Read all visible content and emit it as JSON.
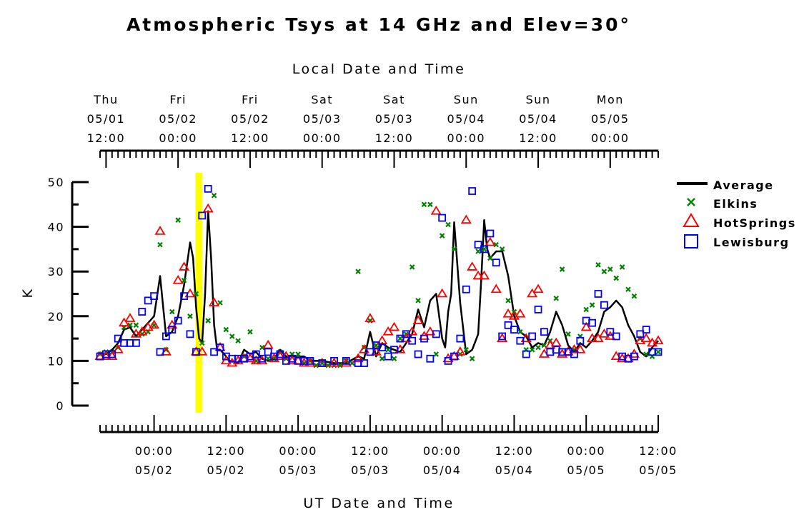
{
  "chart_data": {
    "type": "scatter",
    "title": "Atmospheric Tsys at 14 GHz and Elev=30°",
    "top_axis_title": "Local Date and Time",
    "xlabel": "UT Date and Time",
    "ylabel": "K",
    "x_unit": "hours since 2008-05-01 00:00 UT",
    "xlim": [
      15.0,
      108.0
    ],
    "ylim": [
      0,
      50
    ],
    "yticks": [
      0,
      10,
      20,
      30,
      40,
      50
    ],
    "grid": false,
    "legend_position": "right",
    "top_ticks": [
      {
        "x": 16,
        "lines": [
          "Thu",
          "05/01",
          "12:00"
        ]
      },
      {
        "x": 28,
        "lines": [
          "Fri",
          "05/02",
          "00:00"
        ]
      },
      {
        "x": 40,
        "lines": [
          "Fri",
          "05/02",
          "12:00"
        ]
      },
      {
        "x": 52,
        "lines": [
          "Sat",
          "05/03",
          "00:00"
        ]
      },
      {
        "x": 64,
        "lines": [
          "Sat",
          "05/03",
          "12:00"
        ]
      },
      {
        "x": 76,
        "lines": [
          "Sun",
          "05/04",
          "00:00"
        ]
      },
      {
        "x": 88,
        "lines": [
          "Sun",
          "05/04",
          "12:00"
        ]
      },
      {
        "x": 100,
        "lines": [
          "Mon",
          "05/05",
          "00:00"
        ]
      }
    ],
    "bottom_ticks": [
      {
        "x": 24,
        "lines": [
          "00:00",
          "05/02"
        ]
      },
      {
        "x": 36,
        "lines": [
          "12:00",
          "05/02"
        ]
      },
      {
        "x": 48,
        "lines": [
          "00:00",
          "05/03"
        ]
      },
      {
        "x": 60,
        "lines": [
          "12:00",
          "05/03"
        ]
      },
      {
        "x": 72,
        "lines": [
          "00:00",
          "05/04"
        ]
      },
      {
        "x": 84,
        "lines": [
          "12:00",
          "05/04"
        ]
      },
      {
        "x": 96,
        "lines": [
          "00:00",
          "05/05"
        ]
      },
      {
        "x": 108,
        "lines": [
          "12:00",
          "05/05"
        ]
      }
    ],
    "highlight_band": {
      "x_start": 30.9,
      "x_end": 32.0,
      "color": "#ffff00"
    },
    "series": [
      {
        "name": "Average",
        "marker": "line",
        "color": "#000000",
        "x": [
          15.0,
          16.0,
          17.0,
          18.0,
          19.0,
          20.0,
          21.0,
          22.0,
          23.0,
          24.0,
          25.0,
          26.0,
          27.0,
          28.0,
          29.0,
          30.0,
          30.5,
          31.0,
          31.5,
          32.0,
          32.5,
          33.0,
          33.5,
          34.0,
          34.5,
          35.0,
          36.0,
          36.5,
          37.0,
          38.0,
          39.0,
          40.0,
          41.0,
          42.0,
          43.0,
          44.0,
          45.0,
          46.0,
          47.0,
          48.0,
          49.0,
          50.0,
          52.0,
          54.0,
          56.0,
          58.0,
          59.0,
          60.0,
          61.0,
          62.0,
          63.0,
          64.0,
          65.0,
          66.0,
          67.0,
          68.0,
          69.0,
          70.0,
          71.0,
          72.0,
          72.5,
          73.0,
          73.5,
          74.0,
          75.0,
          76.0,
          77.0,
          78.0,
          78.5,
          79.0,
          79.5,
          80.0,
          81.0,
          82.0,
          83.0,
          84.0,
          85.0,
          86.0,
          87.0,
          88.0,
          89.0,
          90.0,
          91.0,
          92.0,
          93.0,
          94.0,
          95.0,
          96.0,
          97.0,
          98.0,
          99.0,
          100.0,
          101.0,
          102.0,
          103.0,
          104.0,
          105.0,
          106.0,
          107.0,
          108.0
        ],
        "y": [
          11.5,
          11.5,
          12.5,
          14.0,
          17.0,
          17.5,
          15.5,
          17.0,
          18.5,
          20.0,
          29.0,
          15.5,
          16.5,
          20.0,
          27.0,
          36.5,
          33.0,
          22.0,
          15.0,
          14.0,
          25.0,
          43.5,
          33.0,
          18.0,
          12.5,
          12.5,
          11.0,
          10.0,
          10.0,
          9.5,
          12.5,
          11.5,
          12.0,
          10.5,
          10.0,
          10.5,
          12.5,
          11.0,
          11.0,
          11.0,
          11.0,
          10.0,
          10.0,
          9.5,
          9.5,
          11.0,
          10.5,
          16.5,
          11.0,
          14.0,
          13.0,
          12.5,
          12.0,
          14.0,
          16.0,
          21.5,
          17.5,
          23.5,
          25.0,
          15.0,
          13.0,
          21.0,
          25.0,
          41.0,
          23.0,
          11.5,
          12.5,
          16.0,
          28.0,
          41.5,
          35.0,
          33.0,
          34.5,
          34.5,
          29.0,
          20.0,
          16.5,
          15.5,
          13.0,
          14.0,
          13.5,
          16.5,
          21.0,
          18.0,
          13.5,
          12.0,
          14.0,
          13.0,
          14.5,
          16.5,
          21.0,
          22.0,
          23.5,
          22.0,
          18.0,
          15.5,
          12.0,
          11.0,
          13.0,
          14.5
        ]
      },
      {
        "name": "Elkins",
        "marker": "x",
        "color": "#008000",
        "x": [
          15.0,
          16.0,
          17.0,
          18.0,
          19.0,
          20.0,
          21.0,
          22.0,
          23.0,
          24.0,
          25.0,
          26.0,
          27.0,
          28.0,
          29.0,
          30.0,
          31.0,
          32.0,
          33.0,
          34.0,
          35.0,
          36.0,
          37.0,
          38.0,
          39.0,
          40.0,
          41.0,
          42.0,
          43.0,
          44.0,
          45.0,
          46.0,
          47.0,
          48.0,
          49.0,
          50.0,
          51.0,
          52.0,
          53.0,
          54.0,
          55.0,
          56.0,
          57.0,
          58.0,
          59.0,
          60.0,
          61.0,
          62.0,
          63.0,
          64.0,
          65.0,
          66.0,
          67.0,
          68.0,
          69.0,
          70.0,
          71.0,
          72.0,
          73.0,
          74.0,
          75.0,
          76.0,
          77.0,
          78.0,
          79.0,
          80.0,
          81.0,
          82.0,
          83.0,
          84.0,
          85.0,
          86.0,
          87.0,
          88.0,
          89.0,
          90.0,
          91.0,
          92.0,
          93.0,
          94.0,
          95.0,
          96.0,
          97.0,
          98.0,
          99.0,
          100.0,
          101.0,
          102.0,
          103.0,
          104.0,
          105.0,
          106.0,
          107.0,
          108.0
        ],
        "y": [
          11.5,
          12.0,
          12.0,
          13.0,
          17.5,
          18.0,
          18.0,
          16.0,
          16.5,
          18.0,
          36.0,
          12.5,
          21.0,
          41.5,
          28.0,
          20.0,
          25.0,
          14.0,
          19.0,
          47.0,
          23.0,
          17.0,
          15.5,
          14.5,
          11.0,
          16.5,
          10.0,
          13.0,
          10.5,
          10.5,
          12.0,
          10.5,
          11.5,
          11.5,
          9.5,
          10.0,
          9.0,
          9.5,
          9.0,
          9.0,
          9.0,
          10.0,
          9.5,
          30.0,
          13.0,
          19.0,
          13.5,
          10.5,
          12.5,
          10.5,
          15.0,
          16.0,
          31.0,
          23.5,
          45.0,
          45.0,
          11.5,
          38.0,
          40.5,
          35.0,
          11.5,
          12.5,
          10.5,
          34.5,
          35.0,
          33.0,
          36.0,
          35.0,
          23.5,
          21.0,
          16.5,
          12.5,
          12.5,
          13.0,
          13.5,
          14.5,
          24.0,
          30.5,
          16.0,
          12.5,
          15.5,
          21.5,
          22.5,
          31.5,
          30.0,
          30.5,
          28.5,
          31.0,
          26.0,
          24.5,
          15.0,
          11.5,
          11.0,
          12.0
        ]
      },
      {
        "name": "HotSprings",
        "marker": "triangle",
        "color": "#ff0000",
        "x": [
          15.0,
          16.0,
          17.0,
          18.0,
          19.0,
          20.0,
          21.0,
          22.0,
          23.0,
          24.0,
          25.0,
          26.0,
          27.0,
          28.0,
          29.0,
          30.0,
          31.0,
          32.0,
          33.0,
          34.0,
          35.0,
          36.0,
          37.0,
          38.0,
          39.0,
          40.0,
          41.0,
          42.0,
          43.0,
          44.0,
          45.0,
          46.0,
          47.0,
          48.0,
          49.0,
          50.0,
          52.0,
          54.0,
          56.0,
          58.0,
          59.0,
          60.0,
          61.0,
          62.0,
          63.0,
          64.0,
          65.0,
          66.0,
          67.0,
          68.0,
          69.0,
          70.0,
          71.0,
          72.0,
          73.0,
          74.0,
          75.0,
          76.0,
          77.0,
          78.0,
          79.0,
          80.0,
          81.0,
          82.0,
          83.0,
          84.0,
          85.0,
          86.0,
          87.0,
          88.0,
          89.0,
          90.0,
          91.0,
          92.0,
          93.0,
          94.0,
          95.0,
          96.0,
          97.0,
          98.0,
          99.0,
          100.0,
          101.0,
          102.0,
          103.0,
          104.0,
          105.0,
          106.0,
          107.0,
          108.0
        ],
        "y": [
          11.0,
          11.0,
          11.0,
          12.5,
          18.5,
          19.5,
          16.0,
          16.5,
          17.5,
          18.0,
          39.0,
          12.0,
          18.0,
          28.0,
          31.0,
          25.0,
          12.0,
          12.0,
          44.0,
          23.0,
          13.0,
          10.0,
          9.5,
          10.0,
          10.5,
          10.5,
          10.0,
          10.0,
          13.5,
          10.5,
          11.0,
          11.0,
          10.0,
          10.0,
          9.5,
          9.5,
          9.5,
          9.5,
          9.5,
          10.5,
          12.5,
          19.5,
          12.0,
          14.5,
          16.5,
          17.5,
          12.5,
          15.0,
          16.5,
          19.0,
          15.5,
          16.5,
          43.5,
          25.0,
          10.5,
          11.0,
          12.0,
          41.5,
          31.0,
          29.0,
          29.0,
          36.5,
          26.0,
          15.0,
          20.5,
          20.0,
          20.5,
          15.0,
          25.0,
          26.0,
          11.5,
          13.5,
          14.0,
          11.5,
          12.0,
          12.5,
          12.5,
          17.5,
          15.0,
          15.0,
          16.0,
          15.5,
          11.0,
          10.5,
          10.5,
          11.5,
          14.5,
          15.0,
          14.0,
          14.5
        ]
      },
      {
        "name": "Lewisburg",
        "marker": "square",
        "color": "#0000ff",
        "x": [
          15.0,
          16.0,
          17.0,
          18.0,
          19.0,
          20.0,
          21.0,
          22.0,
          23.0,
          24.0,
          25.0,
          26.0,
          27.0,
          28.0,
          29.0,
          30.0,
          31.0,
          32.0,
          33.0,
          34.0,
          35.0,
          36.0,
          37.0,
          38.0,
          39.0,
          40.0,
          41.0,
          42.0,
          43.0,
          44.0,
          45.0,
          46.0,
          47.0,
          48.0,
          49.0,
          50.0,
          52.0,
          54.0,
          56.0,
          58.0,
          59.0,
          60.0,
          61.0,
          62.0,
          63.0,
          64.0,
          65.0,
          66.0,
          67.0,
          68.0,
          69.0,
          70.0,
          71.0,
          72.0,
          73.0,
          74.0,
          75.0,
          76.0,
          77.0,
          78.0,
          79.0,
          80.0,
          81.0,
          82.0,
          83.0,
          84.0,
          85.0,
          86.0,
          87.0,
          88.0,
          89.0,
          90.0,
          91.0,
          92.0,
          93.0,
          94.0,
          95.0,
          96.0,
          97.0,
          98.0,
          99.0,
          100.0,
          101.0,
          102.0,
          103.0,
          104.0,
          105.0,
          106.0,
          107.0,
          108.0
        ],
        "y": [
          11.0,
          11.5,
          11.5,
          15.0,
          14.0,
          14.0,
          14.0,
          21.0,
          23.5,
          24.5,
          12.0,
          15.5,
          17.0,
          19.0,
          24.5,
          16.0,
          12.0,
          42.5,
          48.5,
          12.0,
          13.0,
          11.0,
          10.5,
          10.5,
          10.5,
          11.0,
          11.5,
          10.5,
          12.0,
          11.0,
          11.5,
          10.0,
          10.5,
          10.0,
          10.0,
          10.0,
          9.5,
          10.0,
          10.0,
          9.5,
          9.5,
          12.0,
          13.5,
          13.0,
          11.0,
          12.5,
          15.0,
          16.0,
          14.5,
          11.5,
          15.0,
          10.5,
          16.0,
          42.0,
          10.0,
          11.0,
          15.0,
          26.0,
          48.0,
          36.0,
          35.0,
          38.5,
          32.0,
          15.5,
          18.0,
          17.0,
          14.5,
          11.5,
          15.5,
          21.5,
          16.5,
          12.0,
          12.5,
          12.0,
          12.0,
          11.5,
          14.5,
          19.0,
          18.5,
          25.0,
          22.5,
          16.5,
          15.5,
          11.0,
          10.5,
          11.0,
          16.0,
          17.0,
          12.0,
          12.0
        ]
      }
    ]
  }
}
